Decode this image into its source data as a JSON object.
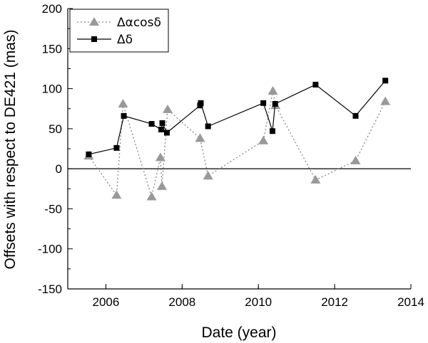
{
  "chart_data": {
    "type": "line",
    "xlabel": "Date (year)",
    "ylabel": "Offsets with respect to DE421 (mas)",
    "xlim": [
      2005,
      2014
    ],
    "ylim": [
      -150,
      200
    ],
    "xticks": [
      2006,
      2008,
      2010,
      2012,
      2014
    ],
    "yticks": [
      -150,
      -100,
      -50,
      0,
      50,
      100,
      150,
      200
    ],
    "zero_line": true,
    "grid": false,
    "legend_position": "top-left",
    "series": [
      {
        "name": "Δαcosδ",
        "marker": "triangle",
        "line_style": "dotted",
        "color": "#999999",
        "x": [
          2005.55,
          2006.28,
          2006.45,
          2007.2,
          2007.43,
          2007.47,
          2007.62,
          2008.47,
          2008.68,
          2010.13,
          2010.38,
          2010.45,
          2011.5,
          2012.55,
          2013.33
        ],
        "y": [
          16,
          -33,
          81,
          -35,
          14,
          -22,
          74,
          38,
          -9,
          35,
          97,
          79,
          -14,
          10,
          84
        ]
      },
      {
        "name": "Δδ",
        "marker": "square",
        "line_style": "solid",
        "color": "#000000",
        "x": [
          2005.55,
          2006.28,
          2006.47,
          2007.2,
          2007.45,
          2007.48,
          2007.6,
          2008.47,
          2008.49,
          2008.68,
          2010.13,
          2010.37,
          2010.44,
          2011.5,
          2012.55,
          2013.33
        ],
        "y": [
          18,
          26,
          66,
          56,
          49,
          57,
          45,
          79,
          82,
          53,
          82,
          47,
          81,
          105,
          66,
          110
        ]
      }
    ]
  }
}
